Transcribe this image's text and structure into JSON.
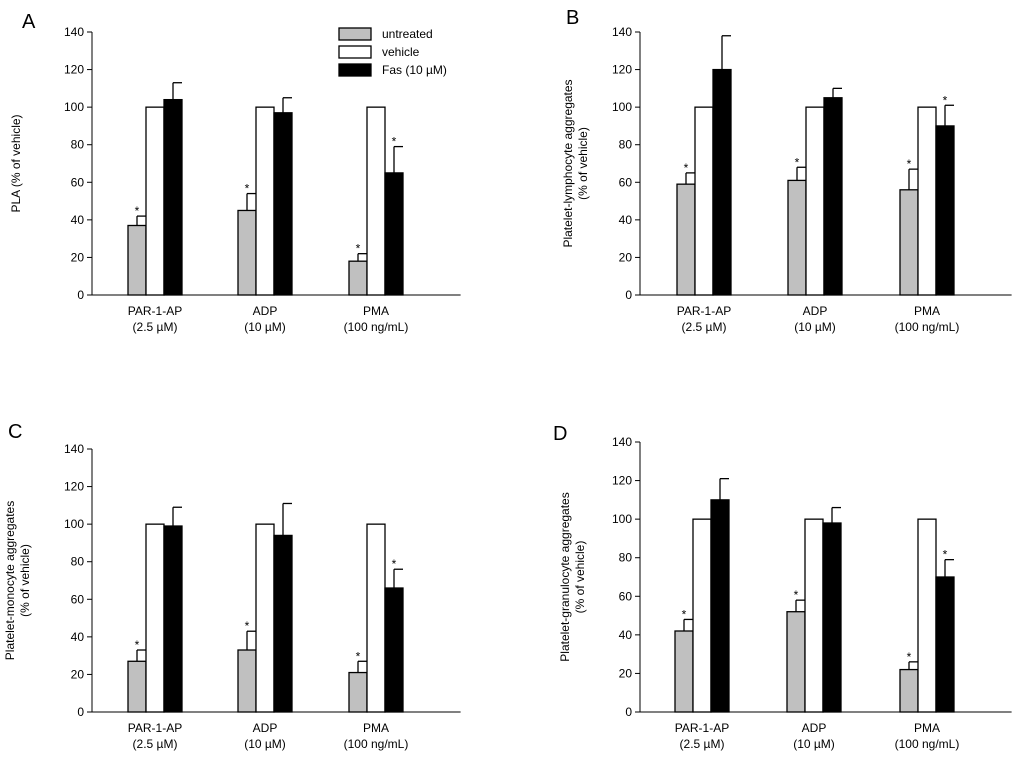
{
  "figure": {
    "legend": [
      {
        "name": "untreated",
        "color": "#c0c0c0"
      },
      {
        "name": "vehicle",
        "color": "#ffffff"
      },
      {
        "name": "Fas (10 µM)",
        "color": "#000000"
      }
    ],
    "significance_mark": "*"
  },
  "chart_data": [
    {
      "panel": "A",
      "type": "bar",
      "ylabel": [
        "PLA (% of vehicle)"
      ],
      "ylim": [
        0,
        140
      ],
      "yticks": [
        0,
        20,
        40,
        60,
        80,
        100,
        120,
        140
      ],
      "categories": [
        [
          "PAR-1-AP",
          "(2.5 µM)"
        ],
        [
          "ADP",
          "(10 µM)"
        ],
        [
          "PMA",
          "(100 ng/mL)"
        ]
      ],
      "series": [
        {
          "name": "untreated",
          "values": [
            37,
            45,
            18
          ],
          "errors": [
            5,
            9,
            4
          ],
          "significant": [
            true,
            true,
            true
          ]
        },
        {
          "name": "vehicle",
          "values": [
            100,
            100,
            100
          ],
          "errors": [
            0,
            0,
            0
          ],
          "significant": [
            false,
            false,
            false
          ]
        },
        {
          "name": "Fas (10 µM)",
          "values": [
            104,
            97,
            65
          ],
          "errors": [
            9,
            8,
            14
          ],
          "significant": [
            false,
            false,
            true
          ]
        }
      ],
      "legend_position": "top-right"
    },
    {
      "panel": "B",
      "type": "bar",
      "ylabel": [
        "Platelet-lymphocyte aggregates",
        "(% of vehicle)"
      ],
      "ylim": [
        0,
        140
      ],
      "yticks": [
        0,
        20,
        40,
        60,
        80,
        100,
        120,
        140
      ],
      "categories": [
        [
          "PAR-1-AP",
          "(2.5 µM)"
        ],
        [
          "ADP",
          "(10 µM)"
        ],
        [
          "PMA",
          "(100 ng/mL)"
        ]
      ],
      "series": [
        {
          "name": "untreated",
          "values": [
            59,
            61,
            56
          ],
          "errors": [
            6,
            7,
            11
          ],
          "significant": [
            true,
            true,
            true
          ]
        },
        {
          "name": "vehicle",
          "values": [
            100,
            100,
            100
          ],
          "errors": [
            0,
            0,
            0
          ],
          "significant": [
            false,
            false,
            false
          ]
        },
        {
          "name": "Fas (10 µM)",
          "values": [
            120,
            105,
            90
          ],
          "errors": [
            18,
            5,
            11
          ],
          "significant": [
            false,
            false,
            true
          ]
        }
      ]
    },
    {
      "panel": "C",
      "type": "bar",
      "ylabel": [
        "Platelet-monocyte aggregates",
        "(% of vehicle)"
      ],
      "ylim": [
        0,
        140
      ],
      "yticks": [
        0,
        20,
        40,
        60,
        80,
        100,
        120,
        140
      ],
      "categories": [
        [
          "PAR-1-AP",
          "(2.5 µM)"
        ],
        [
          "ADP",
          "(10 µM)"
        ],
        [
          "PMA",
          "(100 ng/mL)"
        ]
      ],
      "series": [
        {
          "name": "untreated",
          "values": [
            27,
            33,
            21
          ],
          "errors": [
            6,
            10,
            6
          ],
          "significant": [
            true,
            true,
            true
          ]
        },
        {
          "name": "vehicle",
          "values": [
            100,
            100,
            100
          ],
          "errors": [
            0,
            0,
            0
          ],
          "significant": [
            false,
            false,
            false
          ]
        },
        {
          "name": "Fas (10 µM)",
          "values": [
            99,
            94,
            66
          ],
          "errors": [
            10,
            17,
            10
          ],
          "significant": [
            false,
            false,
            true
          ]
        }
      ]
    },
    {
      "panel": "D",
      "type": "bar",
      "ylabel": [
        "Platelet-granulocyte aggregates",
        "(% of vehicle)"
      ],
      "ylim": [
        0,
        140
      ],
      "yticks": [
        0,
        20,
        40,
        60,
        80,
        100,
        120,
        140
      ],
      "categories": [
        [
          "PAR-1-AP",
          "(2.5 µM)"
        ],
        [
          "ADP",
          "(10 µM)"
        ],
        [
          "PMA",
          "(100 ng/mL)"
        ]
      ],
      "series": [
        {
          "name": "untreated",
          "values": [
            42,
            52,
            22
          ],
          "errors": [
            6,
            6,
            4
          ],
          "significant": [
            true,
            true,
            true
          ]
        },
        {
          "name": "vehicle",
          "values": [
            100,
            100,
            100
          ],
          "errors": [
            0,
            0,
            0
          ],
          "significant": [
            false,
            false,
            false
          ]
        },
        {
          "name": "Fas (10 µM)",
          "values": [
            110,
            98,
            70
          ],
          "errors": [
            11,
            8,
            9
          ],
          "significant": [
            false,
            false,
            true
          ]
        }
      ]
    }
  ]
}
